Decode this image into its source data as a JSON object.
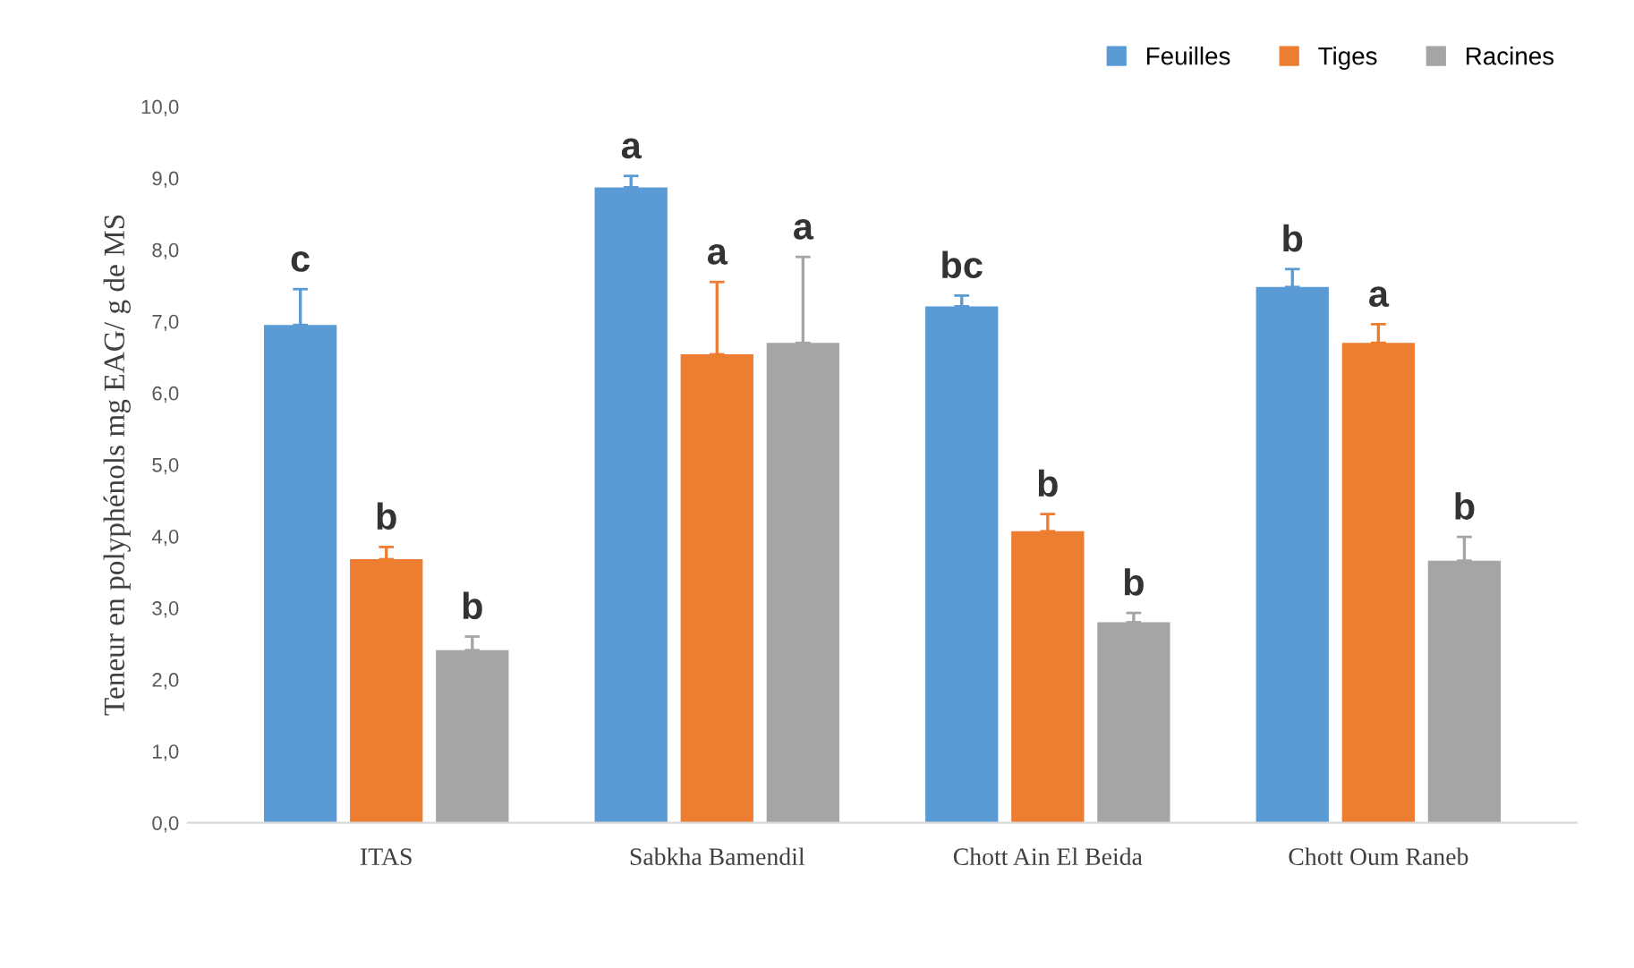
{
  "chart_data": {
    "type": "bar",
    "ylabel": "Teneur en polyphénols mg EAG/ g de MS",
    "categories": [
      "ITAS",
      "Sabkha Bamendil",
      "Chott Ain El Beida",
      "Chott Oum Raneb"
    ],
    "series": [
      {
        "name": "Feuilles",
        "color": "#5b9bd5",
        "values": [
          6.95,
          8.87,
          7.21,
          7.48
        ],
        "errors": [
          [
            6.95,
            7.45
          ],
          [
            8.87,
            9.03
          ],
          [
            7.21,
            7.36
          ],
          [
            7.48,
            7.73
          ]
        ]
      },
      {
        "name": "Tiges",
        "color": "#ed7d31",
        "values": [
          3.68,
          6.54,
          4.07,
          6.7
        ],
        "errors": [
          [
            3.68,
            3.85
          ],
          [
            6.54,
            7.55
          ],
          [
            4.07,
            4.31
          ],
          [
            6.7,
            6.96
          ]
        ]
      },
      {
        "name": "Racines",
        "color": "#a5a5a5",
        "values": [
          2.41,
          6.7,
          2.8,
          3.66
        ],
        "errors": [
          [
            2.41,
            2.6
          ],
          [
            6.7,
            7.9
          ],
          [
            2.8,
            2.93
          ],
          [
            3.66,
            3.99
          ]
        ]
      }
    ],
    "annotations": [
      "c",
      "b",
      "b",
      "a",
      "a",
      "a",
      "bc",
      "b",
      "b",
      "b",
      "a",
      "b"
    ],
    "ylim": [
      0,
      10
    ],
    "yticks": [
      {
        "value": 0,
        "label": "0,0"
      },
      {
        "value": 1,
        "label": "1,0"
      },
      {
        "value": 2,
        "label": "2,0"
      },
      {
        "value": 3,
        "label": "3,0"
      },
      {
        "value": 4,
        "label": "4,0"
      },
      {
        "value": 5,
        "label": "5,0"
      },
      {
        "value": 6,
        "label": "6,0"
      },
      {
        "value": 7,
        "label": "7,0"
      },
      {
        "value": 8,
        "label": "8,0"
      },
      {
        "value": 9,
        "label": "9,0"
      },
      {
        "value": 10,
        "label": "10,0"
      }
    ],
    "grid": false,
    "legend": "top right"
  }
}
